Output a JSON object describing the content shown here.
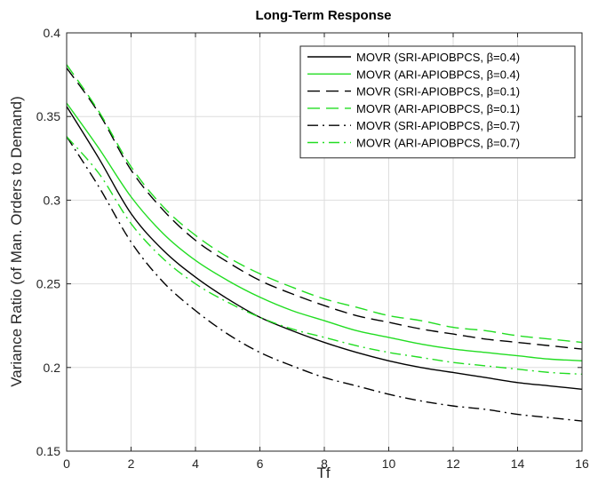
{
  "chart_data": {
    "type": "line",
    "title": "Long-Term Response",
    "xlabel": "Tf",
    "ylabel": "Variance Ratio (of Man. Orders to Demand)",
    "xlim": [
      0,
      16
    ],
    "ylim": [
      0.15,
      0.4
    ],
    "xticks": [
      0,
      2,
      4,
      6,
      8,
      10,
      12,
      14,
      16
    ],
    "yticks": [
      0.15,
      0.2,
      0.25,
      0.3,
      0.35,
      0.4
    ],
    "xtick_labels": [
      "0",
      "2",
      "4",
      "6",
      "8",
      "10",
      "12",
      "14",
      "16"
    ],
    "ytick_labels": [
      "0.15",
      "0.2",
      "0.25",
      "0.3",
      "0.35",
      "0.4"
    ],
    "grid": true,
    "legend_position": "top-right",
    "x": [
      0,
      1,
      2,
      3,
      4,
      5,
      6,
      7,
      8,
      9,
      10,
      11,
      12,
      13,
      14,
      15,
      16
    ],
    "series": [
      {
        "name": "MOVR (SRI-APIOBPCS, β=0.4)",
        "color": "#000000",
        "style": "solid",
        "values": [
          0.356,
          0.325,
          0.292,
          0.27,
          0.254,
          0.241,
          0.23,
          0.222,
          0.215,
          0.209,
          0.204,
          0.2,
          0.197,
          0.194,
          0.191,
          0.189,
          0.187
        ]
      },
      {
        "name": "MOVR (ARI-APIOBPCS, β=0.4)",
        "color": "#22dd22",
        "style": "solid",
        "values": [
          0.358,
          0.331,
          0.302,
          0.28,
          0.264,
          0.252,
          0.242,
          0.234,
          0.228,
          0.222,
          0.218,
          0.214,
          0.211,
          0.209,
          0.207,
          0.205,
          0.204
        ]
      },
      {
        "name": "MOVR (SRI-APIOBPCS, β=0.1)",
        "color": "#000000",
        "style": "dashed",
        "values": [
          0.379,
          0.352,
          0.318,
          0.294,
          0.276,
          0.263,
          0.252,
          0.244,
          0.237,
          0.231,
          0.227,
          0.223,
          0.22,
          0.217,
          0.215,
          0.213,
          0.211
        ]
      },
      {
        "name": "MOVR (ARI-APIOBPCS, β=0.1)",
        "color": "#22dd22",
        "style": "dashed",
        "values": [
          0.381,
          0.353,
          0.32,
          0.296,
          0.279,
          0.266,
          0.256,
          0.248,
          0.241,
          0.236,
          0.231,
          0.228,
          0.224,
          0.222,
          0.219,
          0.217,
          0.215
        ]
      },
      {
        "name": "MOVR (SRI-APIOBPCS, β=0.7)",
        "color": "#000000",
        "style": "dashdot",
        "values": [
          0.338,
          0.308,
          0.275,
          0.251,
          0.234,
          0.22,
          0.209,
          0.201,
          0.194,
          0.189,
          0.184,
          0.18,
          0.177,
          0.175,
          0.172,
          0.17,
          0.168
        ]
      },
      {
        "name": "MOVR (ARI-APIOBPCS, β=0.7)",
        "color": "#22dd22",
        "style": "dashdot",
        "values": [
          0.338,
          0.316,
          0.286,
          0.265,
          0.25,
          0.239,
          0.23,
          0.223,
          0.218,
          0.213,
          0.209,
          0.206,
          0.203,
          0.201,
          0.199,
          0.197,
          0.196
        ]
      }
    ]
  }
}
